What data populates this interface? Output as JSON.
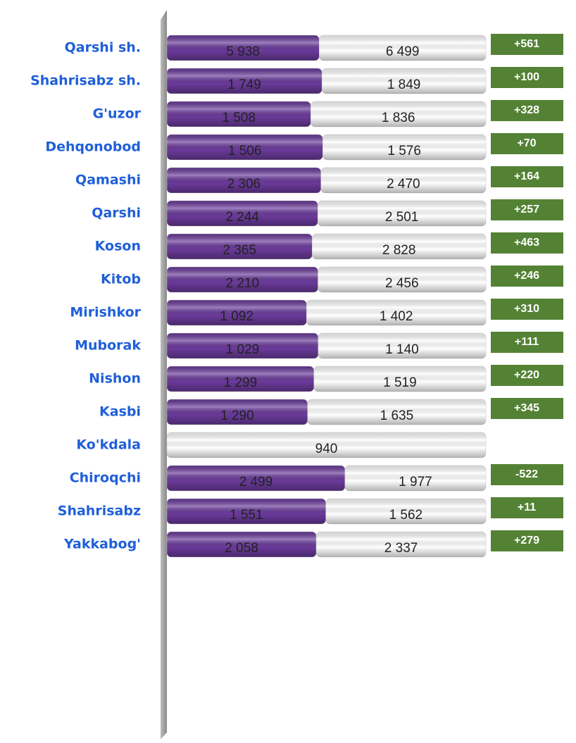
{
  "chart_data": {
    "type": "bar",
    "orientation": "horizontal",
    "stacked": "percent",
    "categories": [
      "Qarshi sh.",
      "Shahrisabz sh.",
      "G'uzor",
      "Dehqonobod",
      "Qamashi",
      "Qarshi",
      "Koson",
      "Kitob",
      "Mirishkor",
      "Muborak",
      "Nishon",
      "Kasbi",
      "Ko'kdala",
      "Chiroqchi",
      "Shahrisabz",
      "Yakkabog'"
    ],
    "series": [
      {
        "color": "#6a3a9a",
        "values": [
          5938,
          1749,
          1508,
          1506,
          2306,
          2244,
          2365,
          2210,
          1092,
          1029,
          1299,
          1290,
          null,
          2499,
          1551,
          2058
        ],
        "value_labels": [
          "5 938",
          "1 749",
          "1 508",
          "1 506",
          "2 306",
          "2 244",
          "2 365",
          "2 210",
          "1 092",
          "1 029",
          "1 299",
          "1 290",
          null,
          "2 499",
          "1 551",
          "2 058"
        ]
      },
      {
        "color": "#ffffff",
        "values": [
          6499,
          1849,
          1836,
          1576,
          2470,
          2501,
          2828,
          2456,
          1402,
          1140,
          1519,
          1635,
          940,
          1977,
          1562,
          2337
        ],
        "value_labels": [
          "6 499",
          "1 849",
          "1 836",
          "1 576",
          "2 470",
          "2 501",
          "2 828",
          "2 456",
          "1 402",
          "1 140",
          "1 519",
          "1 635",
          "940",
          "1 977",
          "1 562",
          "2 337"
        ]
      }
    ],
    "differences": {
      "color": "#548235",
      "values": [
        561,
        100,
        328,
        70,
        164,
        257,
        463,
        246,
        310,
        111,
        220,
        345,
        null,
        -522,
        11,
        279
      ],
      "value_labels": [
        "+561",
        "+100",
        "+328",
        "+70",
        "+164",
        "+257",
        "+463",
        "+246",
        "+310",
        "+111",
        "+220",
        "+345",
        null,
        "-522",
        "+11",
        "+279"
      ]
    }
  }
}
